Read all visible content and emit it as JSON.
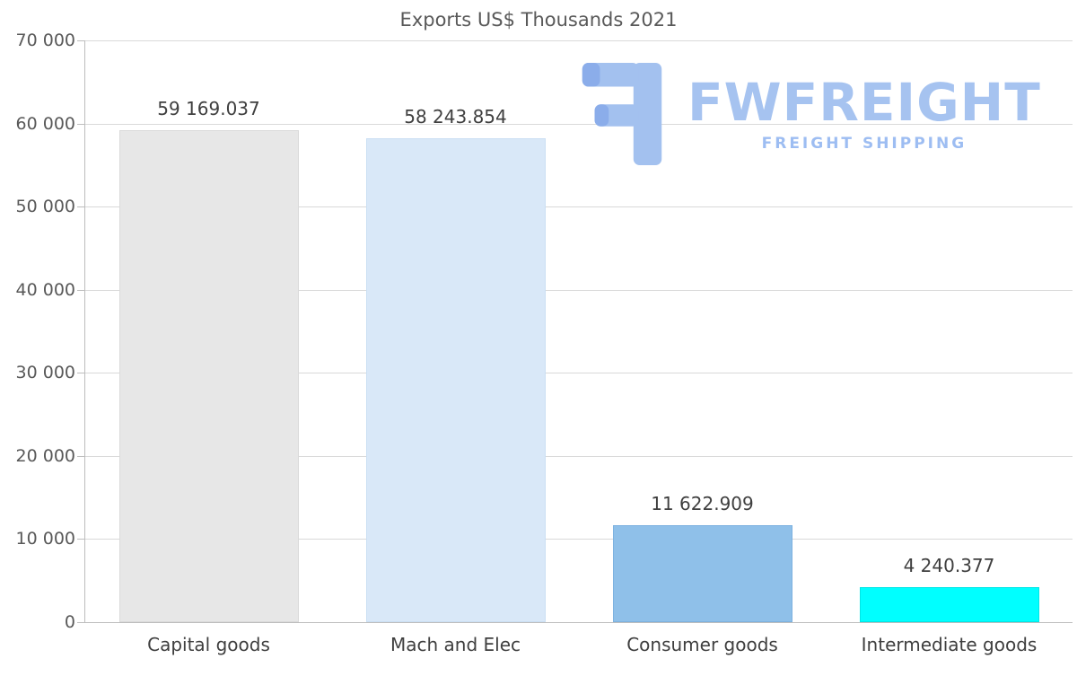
{
  "title": "Exports US$ Thousands 2021",
  "watermark": {
    "brand": "FWFREIGHT",
    "tagline": "FREIGHT SHIPPING",
    "brand_color": "#a6c3f0",
    "tagline_color": "#9dbdf2",
    "icon_color": "#a3c1ef",
    "icon_accent_color": "#8badea"
  },
  "colors": {
    "title_text": "#595959",
    "tick_text": "#595959",
    "value_text": "#3f3f3f",
    "category_text": "#3f3f3f",
    "gridline": "#d9d9d9",
    "axis": "#bdbdbd",
    "background": "#ffffff"
  },
  "chart_data": {
    "type": "bar",
    "title": "Exports US$ Thousands 2021",
    "categories": [
      "Capital goods",
      "Mach and Elec",
      "Consumer goods",
      "Intermediate goods"
    ],
    "values": [
      59169.037,
      58243.854,
      11622.909,
      4240.377
    ],
    "value_labels": [
      "59 169.037",
      "58 243.854",
      "11 622.909",
      "4 240.377"
    ],
    "bar_colors": [
      "#e7e7e7",
      "#d9e8f8",
      "#8fc0e9",
      "#00ffff"
    ],
    "bar_border_colors": [
      "#dadada",
      "#cbdff3",
      "#7db2e0",
      "#00e6e6"
    ],
    "xlabel": "",
    "ylabel": "",
    "ylim": [
      0,
      70000
    ],
    "ytick_step": 10000,
    "ytick_labels": [
      "0",
      "10 000",
      "20 000",
      "30 000",
      "40 000",
      "50 000",
      "60 000",
      "70 000"
    ],
    "grid": true,
    "legend": false
  }
}
